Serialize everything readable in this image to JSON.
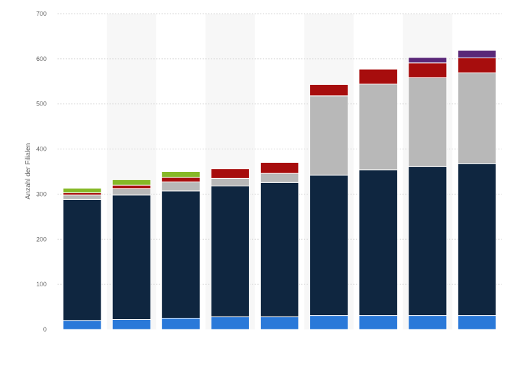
{
  "chart_data": {
    "type": "bar",
    "stacked": true,
    "title": "",
    "xlabel": "",
    "ylabel": "Anzahl der Filialen",
    "ylim": [
      0,
      700
    ],
    "yticks": [
      0,
      100,
      200,
      300,
      400,
      500,
      600,
      700
    ],
    "grid": true,
    "legend": "none",
    "categories": [
      "",
      "",
      "",
      "",
      "",
      "",
      "",
      "",
      ""
    ],
    "series": [
      {
        "color": "#2a79d9",
        "values": [
          20,
          22,
          25,
          28,
          28,
          31,
          31,
          31,
          31
        ]
      },
      {
        "color": "#0f2640",
        "values": [
          268,
          276,
          282,
          290,
          298,
          311,
          323,
          330,
          337
        ]
      },
      {
        "color": "#b8b8b8",
        "values": [
          10,
          14,
          20,
          17,
          20,
          176,
          190,
          197,
          201
        ]
      },
      {
        "color": "#a70d0d",
        "values": [
          5,
          8,
          10,
          21,
          24,
          25,
          33,
          33,
          33
        ]
      },
      {
        "color": "#86b827",
        "values": [
          10,
          12,
          13,
          0,
          0,
          0,
          0,
          0,
          0
        ]
      },
      {
        "color": "#5a2878",
        "values": [
          0,
          0,
          0,
          0,
          0,
          0,
          0,
          12,
          17
        ]
      }
    ],
    "band_color": "#f7f7f7",
    "grid_color": "#d8d8d8",
    "tick_color": "#666666"
  }
}
